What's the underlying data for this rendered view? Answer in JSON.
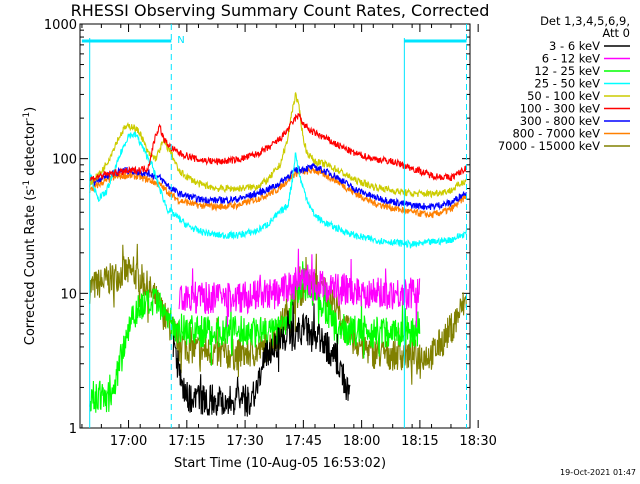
{
  "chart_data": {
    "type": "line",
    "title": "RHESSI Observing Summary Count Rates, Corrected",
    "xlabel": "Start Time (10-Aug-05 16:53:02)",
    "ylabel": "Corrected Count Rate (s⁻¹ detector⁻¹)",
    "ylabel_parts": [
      "Corrected Count Rate (s",
      "-1",
      " detector",
      "-1",
      ")"
    ],
    "yscale": "log",
    "ylim": [
      1,
      1000
    ],
    "xlim_min": [
      -5,
      94
    ],
    "x_unit": "minutes after 16:53:02",
    "y_ticks": [
      1,
      10,
      100,
      1000
    ],
    "y_tick_labels": [
      "1",
      "10",
      "100",
      "1000"
    ],
    "x_ticks": [
      {
        "t": 7,
        "label": "17:00"
      },
      {
        "t": 22,
        "label": "17:15"
      },
      {
        "t": 37,
        "label": "17:30"
      },
      {
        "t": 52,
        "label": "17:45"
      },
      {
        "t": 67,
        "label": "18:00"
      },
      {
        "t": 82,
        "label": "18:15"
      },
      {
        "t": 97,
        "label": "18:30"
      }
    ],
    "grid": false,
    "legend_placement": "right, outside plot",
    "legend_header": [
      "Det 1,3,4,5,6,9,",
      "Att 0"
    ],
    "annotations": {
      "timestamp": "19-Oct-2021 01:47",
      "flag_label": "N",
      "flag_color": "#00e5ff",
      "flag_bars": [
        [
          -5,
          18
        ],
        [
          78,
          94
        ]
      ],
      "marker_lines_dashed": [
        18,
        94
      ],
      "marker_lines_solid": [
        -3,
        78
      ]
    },
    "series": [
      {
        "name": "3 - 6 keV",
        "color": "#000000",
        "x": [
          18.5,
          20,
          22,
          30,
          38,
          40,
          42,
          44,
          46,
          48,
          50,
          52,
          54,
          56,
          58,
          60,
          62,
          63,
          64
        ],
        "y": [
          4,
          2.7,
          1.7,
          1.6,
          1.6,
          2,
          3.2,
          4,
          4.5,
          4.8,
          5,
          5.5,
          5,
          4.5,
          4,
          3.5,
          2.5,
          2,
          1.6
        ]
      },
      {
        "name": "6 - 12 keV",
        "color": "#ff00ff",
        "x": [
          20,
          25,
          30,
          35,
          40,
          45,
          48,
          50,
          55,
          60,
          65,
          70,
          75,
          80,
          82
        ],
        "y": [
          9.5,
          9.3,
          9.2,
          9.3,
          9.5,
          10,
          11,
          12,
          11.5,
          11,
          10.5,
          10,
          10,
          10,
          10
        ]
      },
      {
        "name": "12 - 25 keV",
        "color": "#00ff00",
        "x": [
          -3,
          0,
          3,
          5,
          8,
          10,
          14,
          18,
          20,
          25,
          30,
          40,
          45,
          48,
          50,
          52,
          55,
          58,
          60,
          65,
          70,
          80,
          82
        ],
        "y": [
          1.7,
          1.7,
          1.7,
          3.5,
          7,
          8,
          8.5,
          6,
          5.5,
          5.2,
          5.2,
          5.2,
          5.2,
          6,
          11,
          12,
          10,
          7.5,
          5.5,
          5.2,
          5.2,
          5.2,
          5.2
        ]
      },
      {
        "name": "25 - 50 keV",
        "color": "#00ffff",
        "x": [
          -3,
          -1,
          1,
          3,
          5,
          7,
          9,
          11,
          13,
          15,
          17,
          19,
          22,
          25,
          30,
          35,
          40,
          43,
          46,
          48,
          49,
          50,
          51,
          52,
          53,
          54,
          55,
          57,
          60,
          65,
          70,
          75,
          80,
          85,
          90,
          94
        ],
        "y": [
          80,
          50,
          55,
          75,
          110,
          150,
          150,
          115,
          90,
          60,
          42,
          38,
          32,
          29,
          27,
          27,
          29,
          33,
          40,
          45,
          65,
          110,
          75,
          60,
          50,
          42,
          38,
          34,
          31,
          27,
          25,
          24,
          23,
          24,
          25,
          28
        ]
      },
      {
        "name": "50 - 100 keV",
        "color": "#cccc00",
        "x": [
          -3,
          0,
          2,
          4,
          6,
          8,
          10,
          12,
          14,
          16,
          18,
          20,
          25,
          30,
          35,
          40,
          43,
          46,
          48,
          49,
          50,
          51,
          52,
          53,
          55,
          58,
          60,
          65,
          70,
          75,
          80,
          85,
          90,
          94
        ],
        "y": [
          65,
          80,
          100,
          135,
          170,
          175,
          155,
          110,
          100,
          135,
          110,
          80,
          65,
          60,
          60,
          62,
          70,
          90,
          140,
          220,
          300,
          230,
          140,
          110,
          95,
          90,
          85,
          70,
          62,
          58,
          55,
          55,
          58,
          70
        ]
      },
      {
        "name": "100 - 300 keV",
        "color": "#ff0000",
        "x": [
          -3,
          0,
          3,
          6,
          9,
          12,
          14,
          15,
          16,
          18,
          20,
          25,
          30,
          35,
          40,
          43,
          46,
          48,
          50,
          51,
          52,
          54,
          57,
          60,
          65,
          70,
          75,
          80,
          85,
          90,
          94
        ],
        "y": [
          70,
          75,
          78,
          80,
          82,
          85,
          150,
          175,
          140,
          120,
          110,
          98,
          95,
          98,
          108,
          120,
          140,
          165,
          200,
          210,
          180,
          160,
          145,
          130,
          110,
          100,
          95,
          85,
          75,
          72,
          85
        ]
      },
      {
        "name": "300 - 800 keV",
        "color": "#0000ff",
        "x": [
          -3,
          0,
          3,
          6,
          9,
          12,
          15,
          18,
          20,
          25,
          30,
          35,
          40,
          45,
          50,
          55,
          60,
          65,
          70,
          75,
          80,
          85,
          90,
          94
        ],
        "y": [
          65,
          72,
          78,
          82,
          80,
          78,
          72,
          60,
          55,
          50,
          49,
          50,
          55,
          63,
          82,
          87,
          75,
          60,
          52,
          48,
          45,
          44,
          47,
          57
        ]
      },
      {
        "name": "800 - 7000 keV",
        "color": "#ff8000",
        "x": [
          -3,
          0,
          3,
          6,
          9,
          12,
          15,
          18,
          20,
          25,
          30,
          35,
          40,
          45,
          50,
          55,
          60,
          65,
          70,
          75,
          80,
          85,
          90,
          94
        ],
        "y": [
          58,
          66,
          72,
          75,
          74,
          70,
          64,
          54,
          49,
          45,
          44,
          45,
          50,
          58,
          78,
          82,
          70,
          56,
          47,
          43,
          40,
          38,
          42,
          53
        ]
      },
      {
        "name": "7000 - 15000 keV",
        "color": "#808000",
        "x": [
          -3,
          0,
          3,
          6,
          8,
          10,
          12,
          14,
          16,
          18,
          20,
          22,
          25,
          30,
          35,
          40,
          43,
          46,
          48,
          50,
          52,
          55,
          58,
          60,
          62,
          65,
          70,
          75,
          80,
          85,
          88,
          90,
          92,
          94
        ],
        "y": [
          11,
          12,
          13,
          14.5,
          14,
          13,
          11,
          9,
          7,
          5.5,
          4.5,
          4,
          3.8,
          3.6,
          3.5,
          3.7,
          4,
          5.5,
          7.5,
          9.5,
          11,
          11.5,
          10.5,
          8.5,
          6,
          4.5,
          3.6,
          3.5,
          3.5,
          3.5,
          4.5,
          5.5,
          7,
          9
        ]
      }
    ]
  }
}
